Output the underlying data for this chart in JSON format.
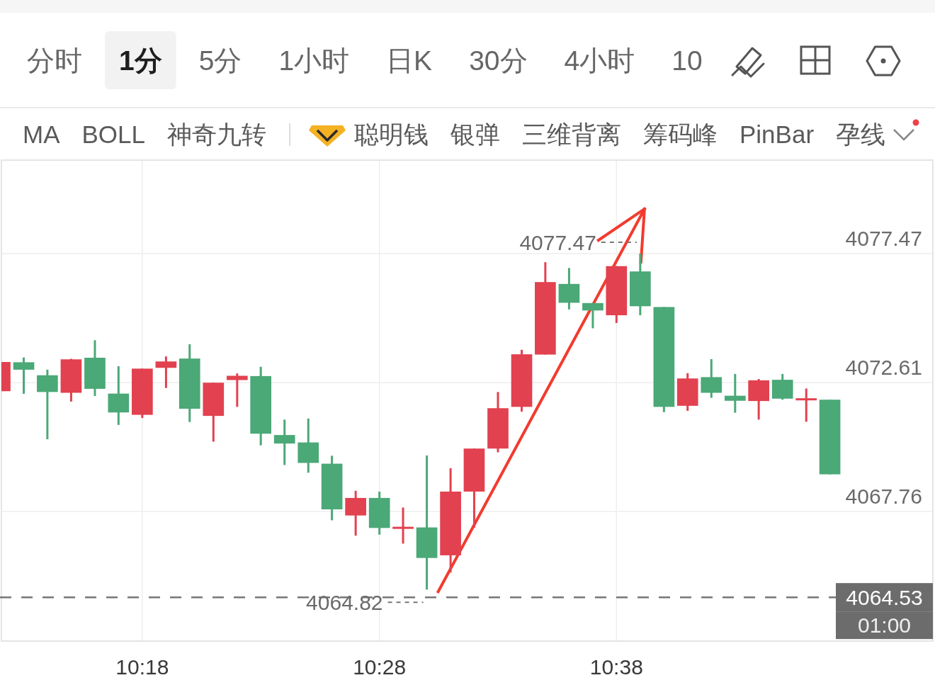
{
  "chart_data": {
    "type": "candlestick",
    "annotations": [
      "分时",
      "1分",
      "5分",
      "1小时",
      "日K",
      "30分",
      "4小时",
      "10",
      "MA",
      "BOLL",
      "神奇九转",
      "聪明钱",
      "银弹",
      "三维背离",
      "筹码峰",
      "PinBar",
      "孕线",
      "01:00",
      {
        "text": "4077.47",
        "x": 10.65,
        "y": 4077.47
      },
      {
        "text": "4064.82",
        "x": 10.5,
        "y": 4064.82
      }
    ],
    "x": [
      10.2,
      10.2167,
      10.2333,
      10.25,
      10.2667,
      10.2833,
      10.3,
      10.3167,
      10.3333,
      10.35,
      10.3667,
      10.3833,
      10.4,
      10.4167,
      10.4333,
      10.45,
      10.4667,
      10.4833,
      10.5,
      10.5167,
      10.5333,
      10.55,
      10.5667,
      10.5833,
      10.6,
      10.6167,
      10.6333,
      10.65,
      10.6667,
      10.6833,
      10.7,
      10.7167,
      10.7333,
      10.75,
      10.7667,
      10.7833
    ],
    "ohlc": [
      [
        4072.29,
        4073.39,
        4072.29,
        4073.39
      ],
      [
        4073.38,
        4073.56,
        4072.19,
        4073.1
      ],
      [
        4072.89,
        4073.1,
        4070.48,
        4072.26
      ],
      [
        4072.23,
        4073.51,
        4071.9,
        4073.49
      ],
      [
        4073.55,
        4074.21,
        4072.11,
        4072.38
      ],
      [
        4072.2,
        4073.23,
        4071.02,
        4071.49
      ],
      [
        4071.4,
        4073.14,
        4071.28,
        4073.14
      ],
      [
        4073.17,
        4073.6,
        4072.41,
        4073.41
      ],
      [
        4073.52,
        4074.06,
        4071.13,
        4071.63
      ],
      [
        4071.36,
        4072.61,
        4070.39,
        4072.61
      ],
      [
        4072.71,
        4072.96,
        4071.7,
        4072.87
      ],
      [
        4072.86,
        4073.21,
        4070.25,
        4070.69
      ],
      [
        4070.64,
        4071.22,
        4069.51,
        4070.32
      ],
      [
        4070.36,
        4071.26,
        4069.22,
        4069.59
      ],
      [
        4069.56,
        4069.86,
        4067.43,
        4067.84
      ],
      [
        4067.61,
        4068.54,
        4066.85,
        4068.27
      ],
      [
        4068.27,
        4068.51,
        4066.89,
        4067.14
      ],
      [
        4067.14,
        4067.91,
        4066.55,
        4067.15
      ],
      [
        4067.16,
        4069.87,
        4064.82,
        4066.01
      ],
      [
        4066.11,
        4069.39,
        4065.46,
        4068.51
      ],
      [
        4068.51,
        4070.13,
        4067.15,
        4070.13
      ],
      [
        4070.13,
        4072.26,
        4069.99,
        4071.65
      ],
      [
        4071.7,
        4073.85,
        4071.52,
        4073.68
      ],
      [
        4073.67,
        4077.15,
        4073.67,
        4076.4
      ],
      [
        4076.33,
        4076.93,
        4075.37,
        4075.62
      ],
      [
        4075.61,
        4075.61,
        4074.66,
        4075.33
      ],
      [
        4075.15,
        4077.0,
        4074.86,
        4077.0
      ],
      [
        4076.8,
        4077.47,
        4075.15,
        4075.49
      ],
      [
        4075.46,
        4075.46,
        4071.5,
        4071.7
      ],
      [
        4071.74,
        4072.97,
        4071.55,
        4072.77
      ],
      [
        4072.82,
        4073.5,
        4072.04,
        4072.23
      ],
      [
        4072.12,
        4072.94,
        4071.48,
        4071.93
      ],
      [
        4071.92,
        4072.75,
        4071.22,
        4072.7
      ],
      [
        4072.72,
        4072.94,
        4071.97,
        4072.01
      ],
      [
        4071.98,
        4072.39,
        4071.14,
        4071.99
      ],
      [
        4071.97,
        4071.97,
        4069.16,
        4069.16
      ]
    ],
    "colors": [
      "#e2414f",
      "#4ba877",
      "#4ba877",
      "#e2414f",
      "#4ba877",
      "#4ba877",
      "#e2414f",
      "#e2414f",
      "#4ba877",
      "#e2414f",
      "#e2414f",
      "#4ba877",
      "#4ba877",
      "#4ba877",
      "#4ba877",
      "#e2414f",
      "#4ba877",
      "#e2414f",
      "#4ba877",
      "#e2414f",
      "#e2414f",
      "#e2414f",
      "#e2414f",
      "#e2414f",
      "#4ba877",
      "#4ba877",
      "#e2414f",
      "#4ba877",
      "#4ba877",
      "#e2414f",
      "#4ba877",
      "#4ba877",
      "#e2414f",
      "#4ba877",
      "#e2414f",
      "#4ba877"
    ],
    "xlim": [
      10.2,
      10.8557
    ],
    "ylim": [
      4062.88,
      4080.94
    ],
    "xticks": [
      {
        "value": 10.3,
        "label": "10:18"
      },
      {
        "value": 10.4667,
        "label": "10:28"
      },
      {
        "value": 10.6333,
        "label": "10:38"
      }
    ],
    "yticks": [
      4077.47,
      4072.61,
      4067.76
    ],
    "grid": true,
    "ref_lines": [
      {
        "axis": "y",
        "value": 4064.53,
        "label": "4064.53",
        "color": "#777777",
        "line_style": "dashed"
      }
    ]
  }
}
